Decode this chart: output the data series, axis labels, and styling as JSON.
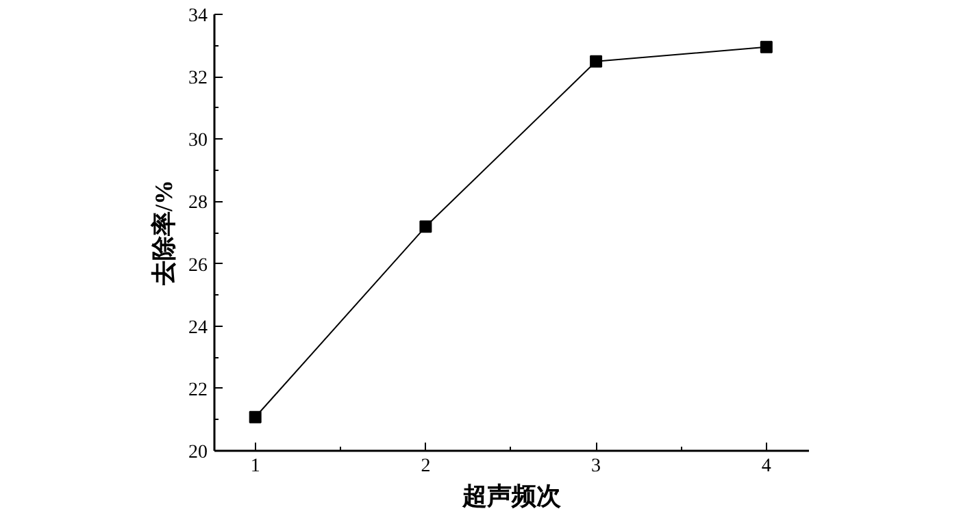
{
  "chart_data": {
    "type": "line",
    "xlabel": "超声频次",
    "ylabel": "去除率/%",
    "x": [
      1,
      2,
      3,
      4
    ],
    "series": [
      {
        "color": "#000000",
        "values": [
          21.08,
          27.19,
          32.49,
          32.95
        ]
      }
    ],
    "xlim": [
      0.76,
      4.25
    ],
    "ylim": [
      20,
      34
    ],
    "xticks": [
      1,
      {
        "value": 1.5,
        "label": null
      },
      2,
      {
        "value": 2.5,
        "label": null
      },
      3,
      {
        "value": 3.5,
        "label": null
      },
      4
    ],
    "yticks": [
      20,
      {
        "value": 21,
        "label": null
      },
      22,
      {
        "value": 23,
        "label": null
      },
      24,
      {
        "value": 25,
        "label": null
      },
      26,
      {
        "value": 27,
        "label": null
      },
      28,
      {
        "value": 29,
        "label": null
      },
      30,
      {
        "value": 31,
        "label": null
      },
      32,
      {
        "value": 33,
        "label": null
      },
      34
    ],
    "marker": "square",
    "line_style": "solid"
  }
}
